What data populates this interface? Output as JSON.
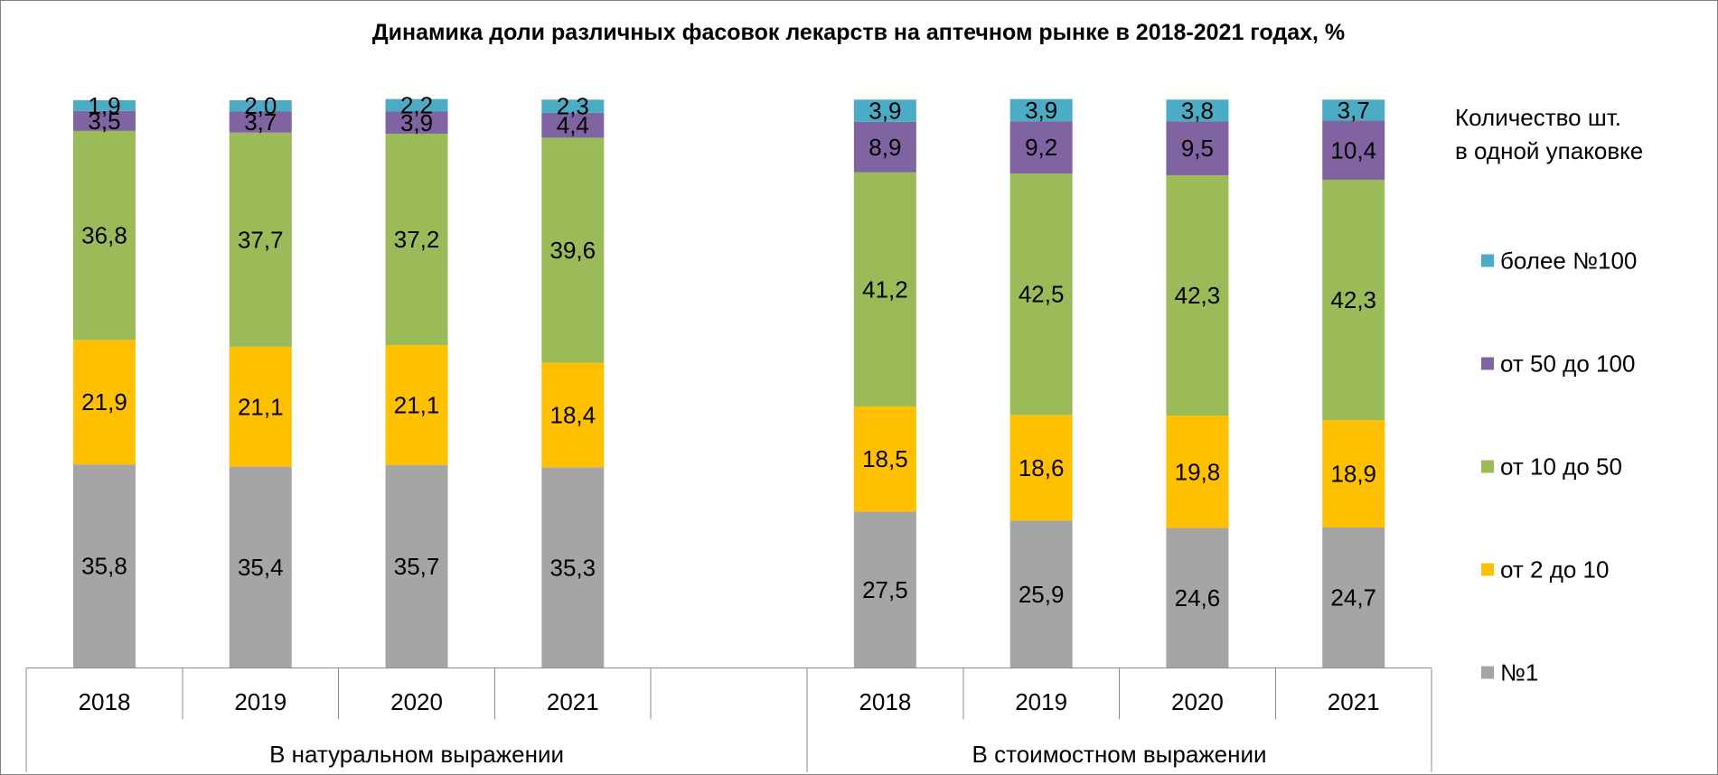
{
  "chart_data": {
    "type": "bar",
    "stacked": true,
    "title": "Динамика доли различных фасовок лекарств на аптечном рынке в 2018-2021 годах, %",
    "ylim": [
      0,
      100
    ],
    "grid": false,
    "categories": [
      "2018",
      "2019",
      "2020",
      "2021",
      "",
      "2018",
      "2019",
      "2020",
      "2021"
    ],
    "category_groups": [
      {
        "label": "В натуральном выражении",
        "span": 5
      },
      {
        "label": "В стоимостном выражении",
        "span": 4
      }
    ],
    "legend": {
      "title": [
        "Количество шт.",
        "в одной упаковке"
      ],
      "position": "right"
    },
    "series": [
      {
        "name": "№1",
        "color": "#A5A5A5",
        "values": [
          35.8,
          35.4,
          35.7,
          35.3,
          null,
          27.5,
          25.9,
          24.6,
          24.7
        ]
      },
      {
        "name": "от 2 до 10",
        "color": "#FFC000",
        "values": [
          21.9,
          21.1,
          21.1,
          18.4,
          null,
          18.5,
          18.6,
          19.8,
          18.9
        ]
      },
      {
        "name": "от 10 до 50",
        "color": "#9BBB59",
        "values": [
          36.8,
          37.7,
          37.2,
          39.6,
          null,
          41.2,
          42.5,
          42.3,
          42.3
        ]
      },
      {
        "name": "от 50 до 100",
        "color": "#8064A2",
        "values": [
          3.5,
          3.7,
          3.9,
          4.4,
          null,
          8.9,
          9.2,
          9.5,
          10.4
        ]
      },
      {
        "name": "более №100",
        "color": "#4BACC6",
        "values": [
          1.9,
          2.0,
          2.2,
          2.3,
          null,
          3.9,
          3.9,
          3.8,
          3.7
        ]
      }
    ]
  }
}
